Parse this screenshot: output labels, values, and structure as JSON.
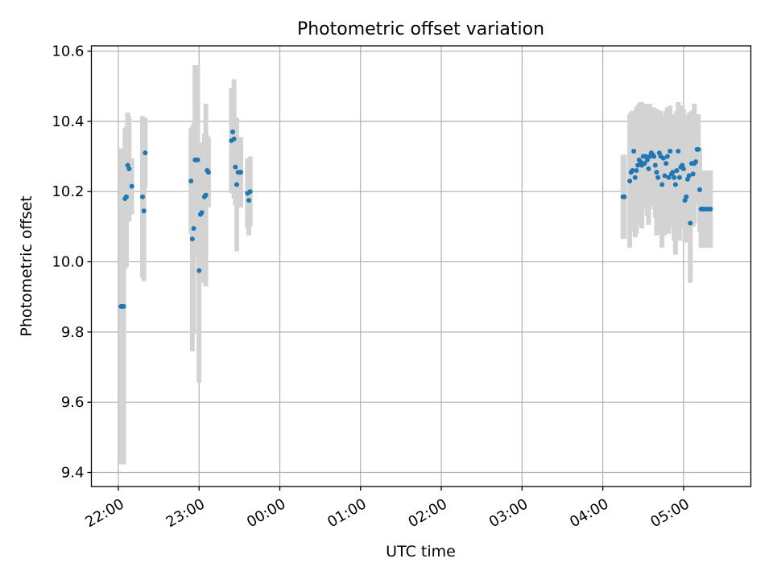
{
  "chart_data": {
    "type": "scatter",
    "title": "Photometric offset variation",
    "xlabel": "UTC time",
    "ylabel": "Photometric offset",
    "xlim": [
      "21:40",
      "05:50"
    ],
    "ylim": [
      9.36,
      10.615
    ],
    "grid": true,
    "x_ticks": [
      "22:00",
      "23:00",
      "00:00",
      "01:00",
      "02:00",
      "03:00",
      "04:00",
      "05:00"
    ],
    "y_ticks": [
      "9.4",
      "9.6",
      "9.8",
      "10.0",
      "10.2",
      "10.4",
      "10.6"
    ],
    "marker_color": "#1f77b4",
    "errorbar_color": "#d3d3d3",
    "series": [
      {
        "x": [
          "22:02",
          "22:03",
          "22:04",
          "22:05",
          "22:06",
          "22:07",
          "22:08",
          "22:10",
          "22:18",
          "22:19",
          "22:20",
          "22:54",
          "22:55",
          "22:56",
          "22:57",
          "22:58",
          "22:59",
          "23:00",
          "23:01",
          "23:02",
          "23:04",
          "23:05",
          "23:06",
          "23:07",
          "23:24",
          "23:25",
          "23:26",
          "23:27",
          "23:28",
          "23:29",
          "23:30",
          "23:31",
          "23:36",
          "23:37",
          "23:38",
          "04:15",
          "04:16",
          "04:20",
          "04:21",
          "04:22",
          "04:23",
          "04:24",
          "04:25",
          "04:26",
          "04:27",
          "04:28",
          "04:29",
          "04:30",
          "04:31",
          "04:32",
          "04:33",
          "04:34",
          "04:35",
          "04:36",
          "04:37",
          "04:38",
          "04:39",
          "04:40",
          "04:41",
          "04:42",
          "04:43",
          "04:44",
          "04:45",
          "04:46",
          "04:47",
          "04:48",
          "04:49",
          "04:50",
          "04:51",
          "04:52",
          "04:53",
          "04:54",
          "04:55",
          "04:56",
          "04:57",
          "04:58",
          "04:59",
          "05:00",
          "05:01",
          "05:02",
          "05:03",
          "05:04",
          "05:05",
          "05:06",
          "05:07",
          "05:08",
          "05:09",
          "05:10",
          "05:11",
          "05:12",
          "05:13",
          "05:14",
          "05:15",
          "05:16",
          "05:18",
          "05:20"
        ],
        "y": [
          9.873,
          9.873,
          9.873,
          10.18,
          10.185,
          10.275,
          10.265,
          10.215,
          10.185,
          10.145,
          10.31,
          10.23,
          10.065,
          10.095,
          10.29,
          10.29,
          10.29,
          9.975,
          10.135,
          10.14,
          10.185,
          10.19,
          10.26,
          10.255,
          10.345,
          10.37,
          10.35,
          10.27,
          10.22,
          10.255,
          10.255,
          10.255,
          10.195,
          10.175,
          10.2,
          10.185,
          10.185,
          10.23,
          10.255,
          10.26,
          10.315,
          10.24,
          10.26,
          10.275,
          10.29,
          10.285,
          10.275,
          10.3,
          10.28,
          10.3,
          10.29,
          10.265,
          10.3,
          10.31,
          10.305,
          10.3,
          10.275,
          10.255,
          10.24,
          10.31,
          10.3,
          10.22,
          10.295,
          10.245,
          10.28,
          10.3,
          10.24,
          10.315,
          10.25,
          10.255,
          10.24,
          10.22,
          10.26,
          10.315,
          10.24,
          10.27,
          10.275,
          10.265,
          10.175,
          10.185,
          10.235,
          10.245,
          10.11,
          10.28,
          10.25,
          10.28,
          10.285,
          10.32,
          10.32,
          10.205,
          10.15,
          10.15,
          10.15,
          10.15,
          10.15,
          10.15
        ],
        "yerr": [
          0.45,
          0.45,
          0.45,
          0.2,
          0.2,
          0.15,
          0.15,
          0.08,
          0.23,
          0.2,
          0.1,
          0.15,
          0.32,
          0.3,
          0.27,
          0.27,
          0.27,
          0.32,
          0.18,
          0.2,
          0.18,
          0.26,
          0.1,
          0.1,
          0.15,
          0.12,
          0.17,
          0.11,
          0.19,
          0.1,
          0.1,
          0.1,
          0.1,
          0.1,
          0.1,
          0.12,
          0.12,
          0.19,
          0.17,
          0.17,
          0.11,
          0.17,
          0.18,
          0.17,
          0.16,
          0.17,
          0.18,
          0.13,
          0.12,
          0.15,
          0.16,
          0.16,
          0.15,
          0.1,
          0.13,
          0.14,
          0.15,
          0.18,
          0.16,
          0.12,
          0.13,
          0.18,
          0.12,
          0.17,
          0.15,
          0.14,
          0.16,
          0.13,
          0.15,
          0.15,
          0.18,
          0.2,
          0.17,
          0.14,
          0.18,
          0.17,
          0.17,
          0.17,
          0.12,
          0.13,
          0.18,
          0.18,
          0.17,
          0.15,
          0.15,
          0.17,
          0.12,
          0.1,
          0.1,
          0.12,
          0.11,
          0.11,
          0.11,
          0.11,
          0.11,
          0.11
        ]
      }
    ]
  }
}
